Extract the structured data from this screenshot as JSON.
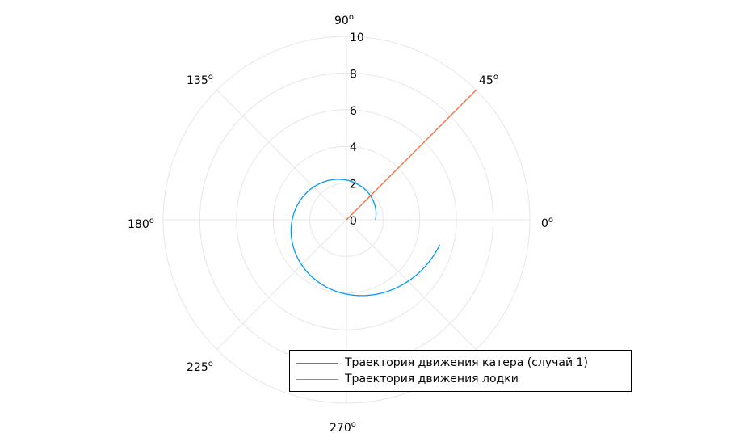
{
  "chart_data": {
    "type": "line",
    "projection": "polar",
    "r_ticks": [
      "0",
      "2",
      "4",
      "6",
      "8",
      "10"
    ],
    "r_range": [
      0,
      10
    ],
    "theta_ticks": [
      {
        "deg": 0,
        "label": "0"
      },
      {
        "deg": 45,
        "label": "45"
      },
      {
        "deg": 90,
        "label": "90"
      },
      {
        "deg": 135,
        "label": "135"
      },
      {
        "deg": 180,
        "label": "180"
      },
      {
        "deg": 225,
        "label": "225"
      },
      {
        "deg": 270,
        "label": "270"
      }
    ],
    "theta_unit_label": "o",
    "grid": true,
    "legend_position": "bottom-right",
    "series": [
      {
        "name": "Траектория движения катера (случай 1)",
        "color": "#009AFA",
        "kind": "log-spiral",
        "r0": 1.58,
        "growth_per_radian": 0.2,
        "theta_range_deg": [
          0,
          345
        ]
      },
      {
        "name": "Траектория движения лодки",
        "color": "#E26F46",
        "kind": "ray",
        "theta_deg": 45,
        "r_range": [
          0,
          14
        ]
      }
    ]
  }
}
